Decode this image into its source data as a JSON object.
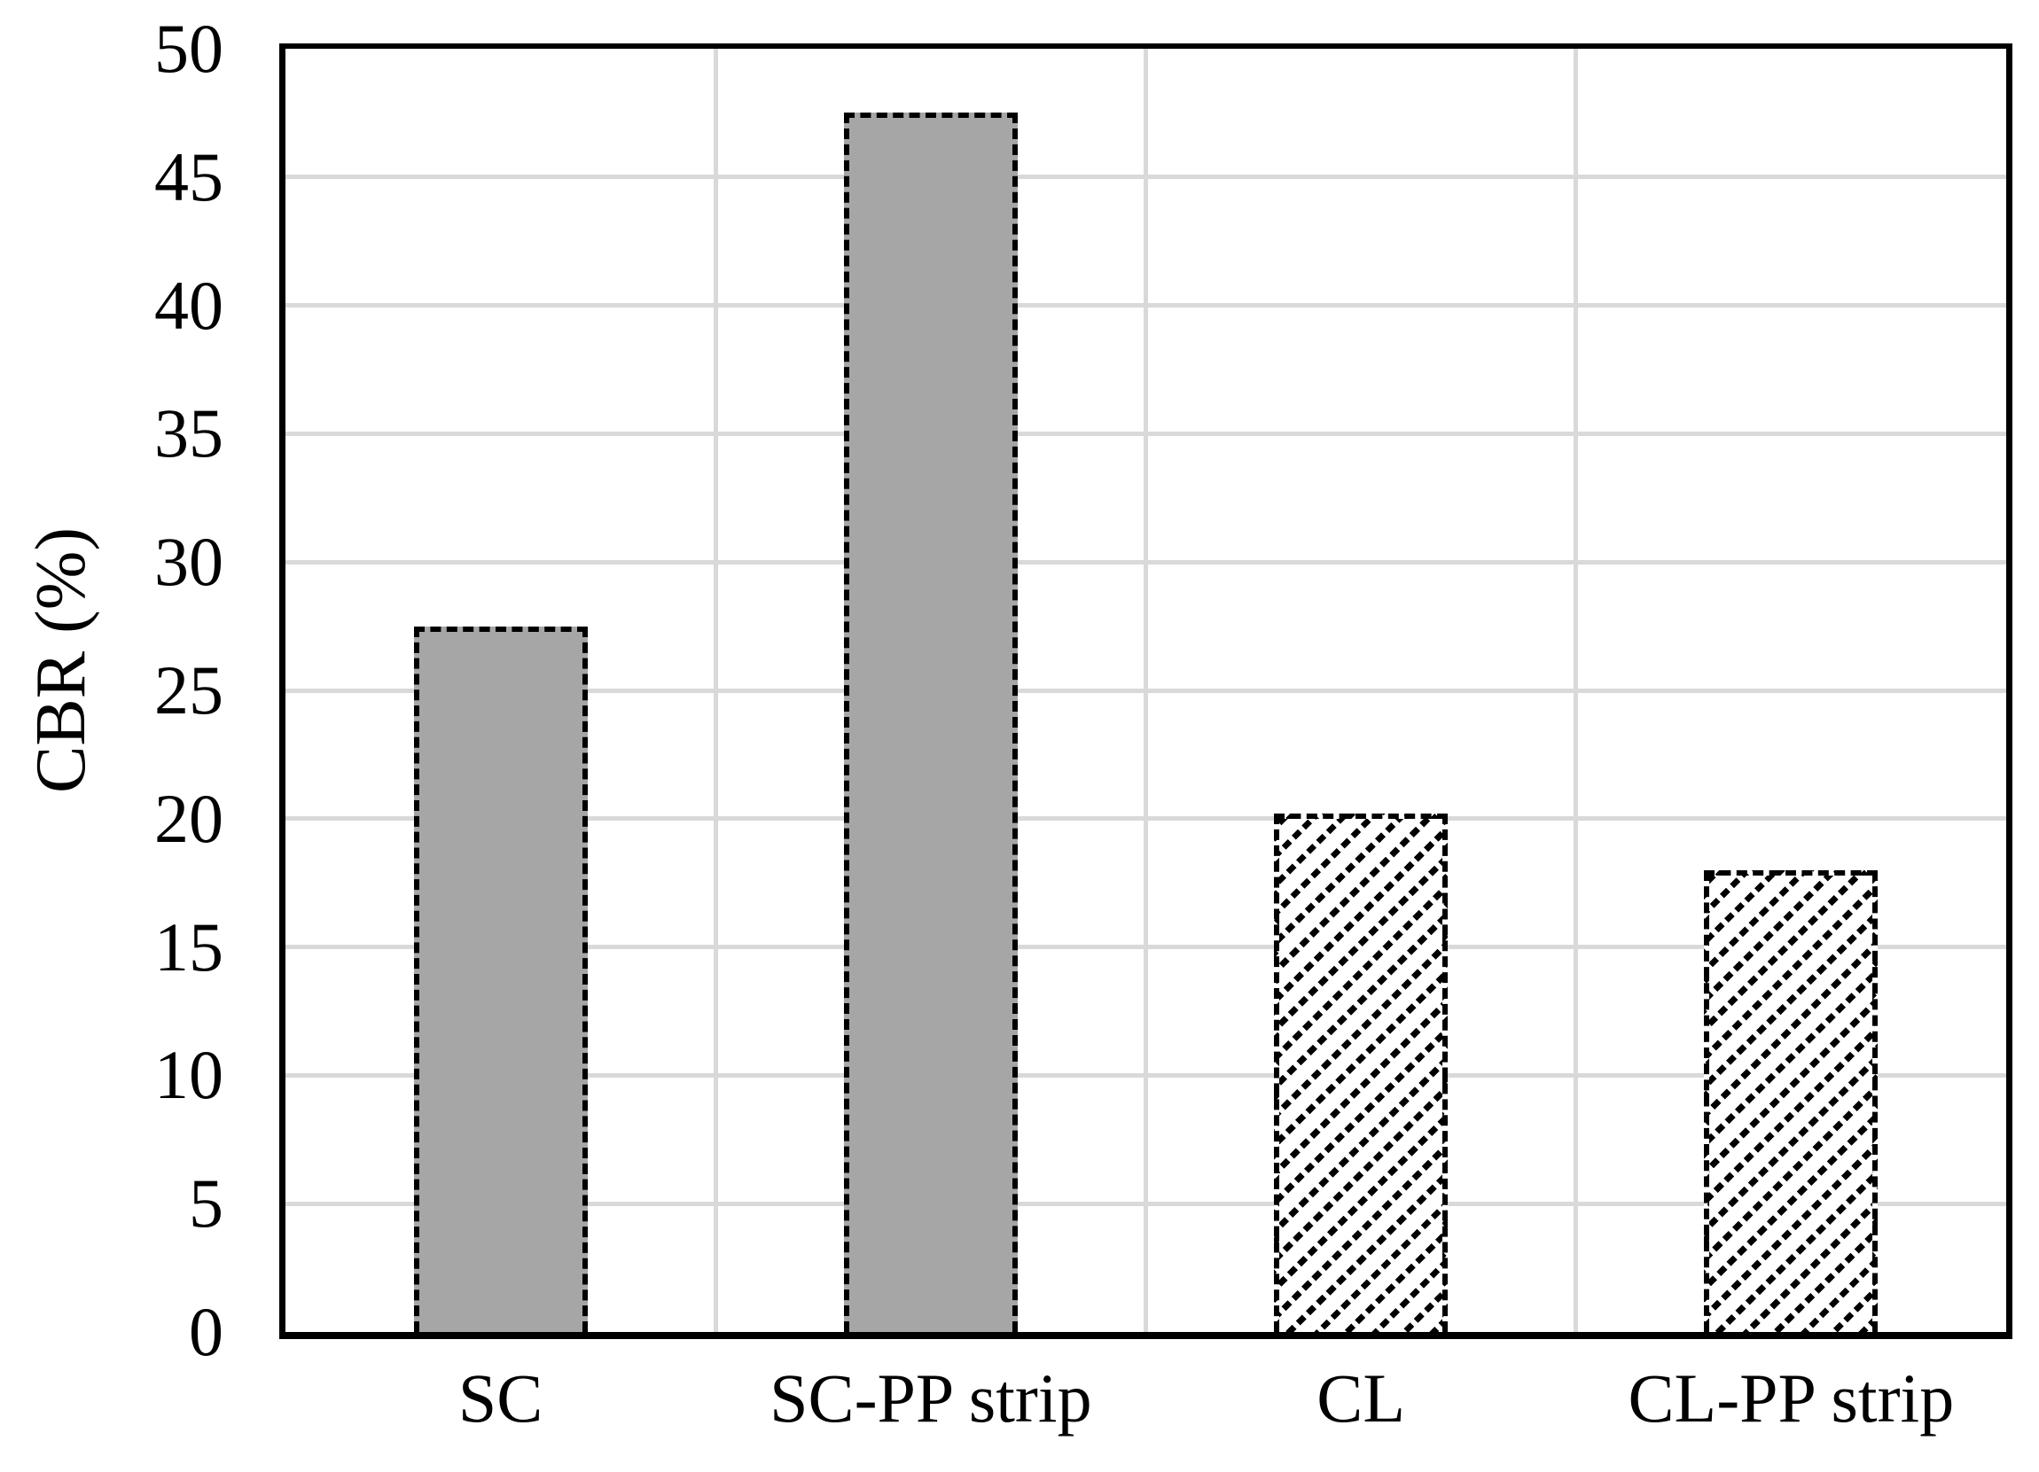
{
  "figure": {
    "background": "#ffffff"
  },
  "chart_data": {
    "type": "bar",
    "title": "",
    "xlabel": "",
    "ylabel": "CBR (%)",
    "categories": [
      "SC",
      "SC-PP strip",
      "CL",
      "CL-PP strip"
    ],
    "values": [
      27.5,
      47.5,
      20.2,
      18.0
    ],
    "bar_patterns": [
      "solid",
      "solid",
      "diagonal-hatch",
      "diagonal-hatch"
    ],
    "ylim": [
      0,
      50
    ],
    "ytick_interval": 5,
    "yticks": [
      0,
      5,
      10,
      15,
      20,
      25,
      30,
      35,
      40,
      45,
      50
    ],
    "grid": {
      "horizontal": true,
      "vertical": true
    },
    "legend": "none",
    "colors": {
      "bar_fill": "#a6a6a6",
      "bar_border": "#000000",
      "hatch_line": "#000000",
      "gridline": "#d9d9d9",
      "axis_frame": "#000000",
      "text": "#000000"
    }
  }
}
